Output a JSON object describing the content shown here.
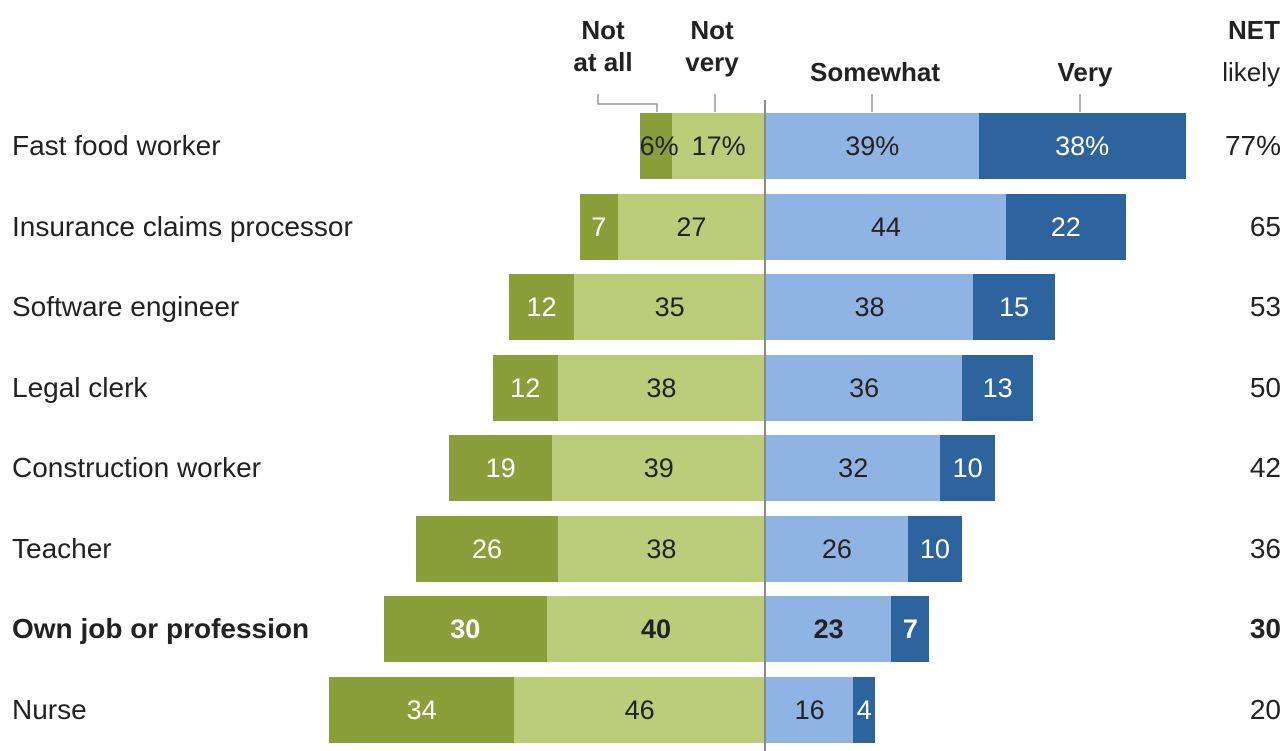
{
  "headers": {
    "not_at_all": [
      "Not",
      "at all"
    ],
    "not_very": [
      "Not",
      "very"
    ],
    "somewhat": "Somewhat",
    "very": "Very",
    "net": [
      "NET",
      "likely"
    ]
  },
  "colors": {
    "not_at_all": "#8a9e3a",
    "not_very": "#bccd7a",
    "somewhat": "#8fb4e3",
    "very": "#2d649e"
  },
  "chart_data": {
    "type": "bar",
    "orientation": "horizontal-diverging",
    "categories": [
      "Fast food worker",
      "Insurance claims processor",
      "Software engineer",
      "Legal clerk",
      "Construction worker",
      "Teacher",
      "Own job or profession",
      "Nurse"
    ],
    "series": [
      {
        "name": "Not at all",
        "side": "left",
        "values": [
          6,
          7,
          12,
          12,
          19,
          26,
          30,
          34
        ],
        "labels": [
          "6%",
          "7",
          "12",
          "12",
          "19",
          "26",
          "30",
          "34"
        ]
      },
      {
        "name": "Not very",
        "side": "left",
        "values": [
          17,
          27,
          35,
          38,
          39,
          38,
          40,
          46
        ],
        "labels": [
          "17%",
          "27",
          "35",
          "38",
          "39",
          "38",
          "40",
          "46"
        ]
      },
      {
        "name": "Somewhat",
        "side": "right",
        "values": [
          39,
          44,
          38,
          36,
          32,
          26,
          23,
          16
        ],
        "labels": [
          "39%",
          "44",
          "38",
          "36",
          "32",
          "26",
          "23",
          "16"
        ]
      },
      {
        "name": "Very",
        "side": "right",
        "values": [
          38,
          22,
          15,
          13,
          10,
          10,
          7,
          4
        ],
        "labels": [
          "38%",
          "22",
          "15",
          "13",
          "10",
          "10",
          "7",
          "4"
        ]
      }
    ],
    "net_likely": [
      "77%",
      "65",
      "53",
      "50",
      "42",
      "36",
      "30",
      "20"
    ],
    "bold_category": "Own job or profession"
  }
}
